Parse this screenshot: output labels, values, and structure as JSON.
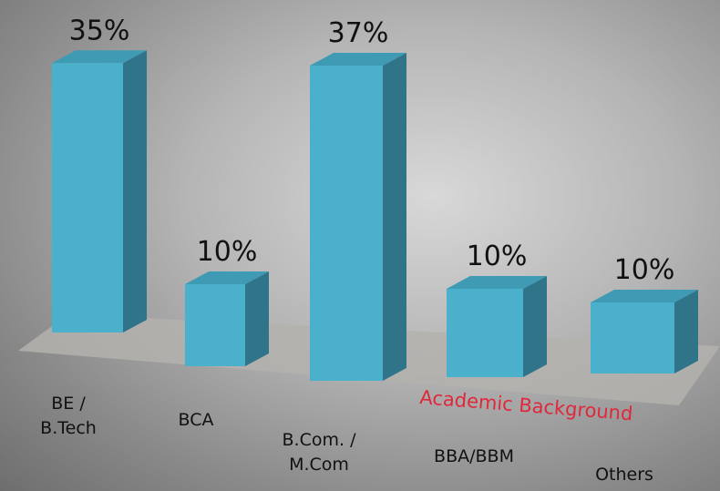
{
  "chart_data": {
    "type": "bar",
    "categories": [
      "BE / B.Tech",
      "BCA",
      "B.Com. / M.Com",
      "BBA/BBM",
      "Others"
    ],
    "values": [
      35,
      10,
      37,
      10,
      10
    ],
    "value_labels": [
      "35%",
      "10%",
      "37%",
      "10%",
      "10%"
    ],
    "color": "#4bb0cb",
    "axis_label": "Academic Background"
  }
}
